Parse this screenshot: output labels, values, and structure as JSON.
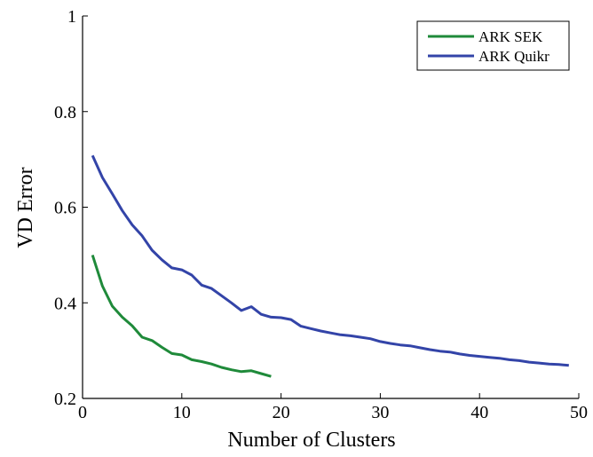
{
  "chart_data": {
    "type": "line",
    "title": "",
    "xlabel": "Number of Clusters",
    "ylabel": "VD Error",
    "xlim": [
      0,
      50
    ],
    "ylim": [
      0.2,
      1
    ],
    "xticks": [
      "0",
      "10",
      "20",
      "30",
      "40",
      "50"
    ],
    "yticks": [
      "0.2",
      "0.4",
      "0.6",
      "0.8",
      "1"
    ],
    "grid": false,
    "legend_position": "top-right",
    "series": [
      {
        "name": "ARK SEK",
        "color": "#1f8a3a",
        "x": [
          1,
          2,
          3,
          4,
          5,
          6,
          7,
          8,
          9,
          10,
          11,
          12,
          13,
          14,
          15,
          16,
          17,
          18,
          19
        ],
        "y": [
          0.5,
          0.435,
          0.393,
          0.37,
          0.352,
          0.328,
          0.321,
          0.307,
          0.294,
          0.291,
          0.281,
          0.277,
          0.272,
          0.265,
          0.26,
          0.256,
          0.258,
          0.252,
          0.246
        ]
      },
      {
        "name": "ARK Quikr",
        "color": "#3344a8",
        "x": [
          1,
          2,
          3,
          4,
          5,
          6,
          7,
          8,
          9,
          10,
          11,
          12,
          13,
          14,
          15,
          16,
          17,
          18,
          19,
          20,
          21,
          22,
          23,
          24,
          25,
          26,
          27,
          28,
          29,
          30,
          31,
          32,
          33,
          34,
          35,
          36,
          37,
          38,
          39,
          40,
          41,
          42,
          43,
          44,
          45,
          46,
          47,
          48,
          49
        ],
        "y": [
          0.708,
          0.662,
          0.628,
          0.593,
          0.563,
          0.54,
          0.51,
          0.49,
          0.473,
          0.469,
          0.458,
          0.437,
          0.43,
          0.415,
          0.4,
          0.384,
          0.392,
          0.376,
          0.37,
          0.369,
          0.365,
          0.351,
          0.346,
          0.341,
          0.337,
          0.333,
          0.331,
          0.328,
          0.325,
          0.319,
          0.315,
          0.312,
          0.31,
          0.306,
          0.302,
          0.299,
          0.297,
          0.293,
          0.29,
          0.288,
          0.286,
          0.284,
          0.281,
          0.279,
          0.276,
          0.274,
          0.272,
          0.271,
          0.269
        ]
      }
    ]
  }
}
